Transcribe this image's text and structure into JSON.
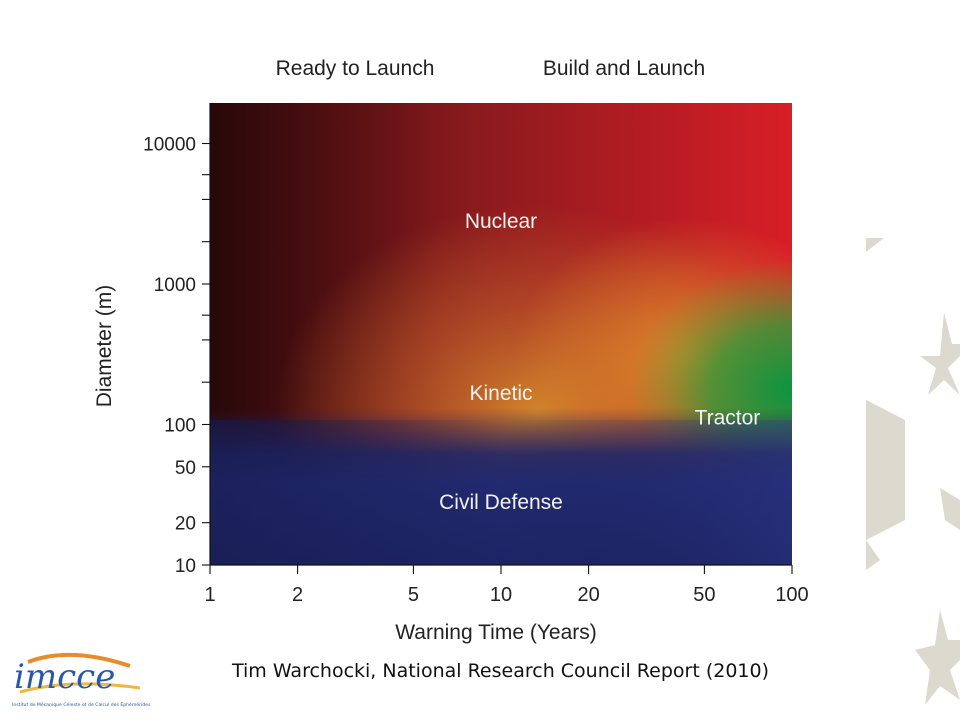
{
  "chart_data": {
    "type": "heatmap",
    "top_labels": [
      "Ready to Launch",
      "Build and Launch"
    ],
    "xlabel": "Warning Time (Years)",
    "ylabel": "Diameter (m)",
    "x_scale": "log",
    "y_scale": "log",
    "xlim": [
      1,
      100
    ],
    "ylim": [
      10,
      20000
    ],
    "x_ticks": [
      1,
      2,
      5,
      10,
      20,
      50,
      100
    ],
    "x_tick_labels": [
      "1",
      "2",
      "5",
      "10",
      "20",
      "50",
      "100"
    ],
    "y_ticks": [
      10,
      20,
      50,
      100,
      1000,
      10000
    ],
    "y_tick_labels": [
      "10",
      "20",
      "50",
      "100",
      "1000",
      "10000"
    ],
    "regions": [
      {
        "label": "Nuclear",
        "x": 10,
        "y": 2500,
        "color": "#c01e24"
      },
      {
        "label": "Kinetic",
        "x": 10,
        "y": 150,
        "color": "#c8712a"
      },
      {
        "label": "Tractor",
        "x": 60,
        "y": 100,
        "color": "#138a3e"
      },
      {
        "label": "Civil Defense",
        "x": 10,
        "y": 25,
        "color": "#262f78"
      }
    ],
    "grid": false
  },
  "caption": "Tim Warchocki, National Research Council Report (2010)",
  "logo": {
    "text": "imcce",
    "subtext": "Institut de Mécanique Céleste et de Calcul des Éphémérides"
  }
}
